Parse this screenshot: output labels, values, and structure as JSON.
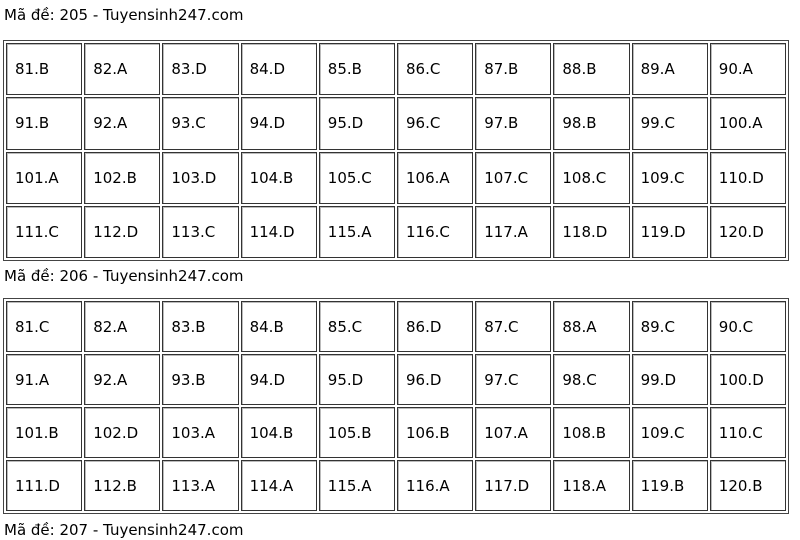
{
  "sections": [
    {
      "title": "Mã đề: 205 - Tuyensinh247.com",
      "answers": [
        "81.B",
        "82.A",
        "83.D",
        "84.D",
        "85.B",
        "86.C",
        "87.B",
        "88.B",
        "89.A",
        "90.A",
        "91.B",
        "92.A",
        "93.C",
        "94.D",
        "95.D",
        "96.C",
        "97.B",
        "98.B",
        "99.C",
        "100.A",
        "101.A",
        "102.B",
        "103.D",
        "104.B",
        "105.C",
        "106.A",
        "107.C",
        "108.C",
        "109.C",
        "110.D",
        "111.C",
        "112.D",
        "113.C",
        "114.D",
        "115.A",
        "116.C",
        "117.A",
        "118.D",
        "119.D",
        "120.D"
      ]
    },
    {
      "title": "Mã đề: 206 - Tuyensinh247.com",
      "answers": [
        "81.C",
        "82.A",
        "83.B",
        "84.B",
        "85.C",
        "86.D",
        "87.C",
        "88.A",
        "89.C",
        "90.C",
        "91.A",
        "92.A",
        "93.B",
        "94.D",
        "95.D",
        "96.D",
        "97.C",
        "98.C",
        "99.D",
        "100.D",
        "101.B",
        "102.D",
        "103.A",
        "104.B",
        "105.B",
        "106.B",
        "107.A",
        "108.B",
        "109.C",
        "110.C",
        "111.D",
        "112.B",
        "113.A",
        "114.A",
        "115.A",
        "116.A",
        "117.D",
        "118.A",
        "119.B",
        "120.B"
      ]
    },
    {
      "title": "Mã đề: 207 - Tuyensinh247.com"
    }
  ]
}
